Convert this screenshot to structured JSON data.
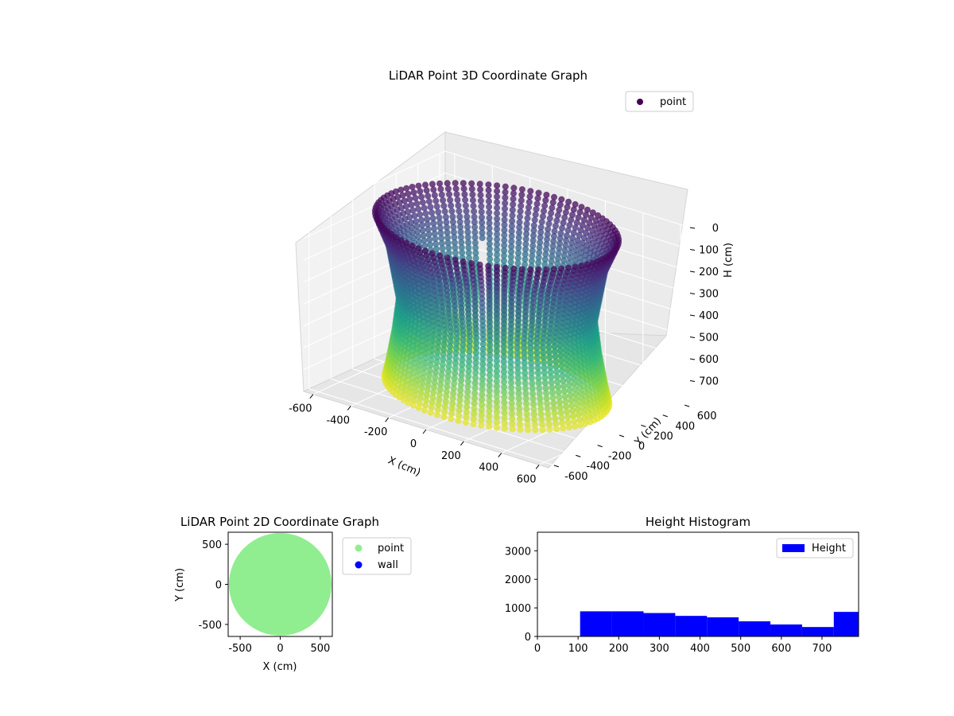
{
  "chart_data": [
    {
      "type": "scatter",
      "projection": "3d",
      "title": "LiDAR Point 3D Coordinate Graph",
      "xlabel": "X (cm)",
      "ylabel": "Y (cm)",
      "zlabel": "H (cm)",
      "xlim": [
        -650,
        650
      ],
      "ylim": [
        -650,
        650
      ],
      "zlim": [
        0,
        800
      ],
      "z_inverted": true,
      "x_ticks": [
        -600,
        -400,
        -200,
        0,
        200,
        400,
        600
      ],
      "y_ticks": [
        -600,
        -400,
        -200,
        0,
        200,
        400,
        600
      ],
      "z_ticks": [
        0,
        100,
        200,
        300,
        400,
        500,
        600,
        700
      ],
      "colormap": "viridis",
      "legend": {
        "entries": [
          "point"
        ],
        "placement": "top-right",
        "marker_color": "#440154"
      },
      "series": [
        {
          "name": "point",
          "shape": "circular wall of points around the origin",
          "profile": [
            {
              "h": 20,
              "r": 560
            },
            {
              "h": 150,
              "r": 500
            },
            {
              "h": 400,
              "r": 450
            },
            {
              "h": 550,
              "r": 470
            },
            {
              "h": 700,
              "r": 500
            },
            {
              "h": 780,
              "r": 520
            }
          ],
          "gap_azimuth_deg": 128
        }
      ],
      "grid": true
    },
    {
      "type": "scatter",
      "title": "LiDAR Point 2D Coordinate Graph",
      "xlabel": "X (cm)",
      "ylabel": "Y (cm)",
      "xlim": [
        -650,
        650
      ],
      "ylim": [
        -650,
        650
      ],
      "x_ticks": [
        -500,
        0,
        500
      ],
      "y_ticks": [
        -500,
        0,
        500
      ],
      "series": [
        {
          "name": "point",
          "color": "#90ee90",
          "shape": "filled disk",
          "center": [
            0,
            0
          ],
          "radius": 640
        },
        {
          "name": "wall",
          "color": "#0000ff",
          "points": []
        }
      ],
      "legend": {
        "entries": [
          "point",
          "wall"
        ],
        "placement": "outside-right"
      }
    },
    {
      "type": "bar",
      "title": "Height Histogram",
      "legend": {
        "entries": [
          "Height"
        ],
        "placement": "top-right"
      },
      "color": "#0000ff",
      "xlim": [
        0,
        790
      ],
      "ylim": [
        0,
        3650
      ],
      "x_ticks": [
        0,
        100,
        200,
        300,
        400,
        500,
        600,
        700
      ],
      "y_ticks": [
        0,
        1000,
        2000,
        3000
      ],
      "bins": [
        {
          "x0": 105,
          "x1": 183,
          "count": 880
        },
        {
          "x0": 183,
          "x1": 261,
          "count": 880
        },
        {
          "x0": 261,
          "x1": 339,
          "count": 820
        },
        {
          "x0": 339,
          "x1": 417,
          "count": 720
        },
        {
          "x0": 417,
          "x1": 495,
          "count": 670
        },
        {
          "x0": 495,
          "x1": 573,
          "count": 530
        },
        {
          "x0": 573,
          "x1": 651,
          "count": 420
        },
        {
          "x0": 651,
          "x1": 729,
          "count": 330
        },
        {
          "x0": 729,
          "x1": 807,
          "count": 860
        }
      ],
      "grid": false
    }
  ]
}
